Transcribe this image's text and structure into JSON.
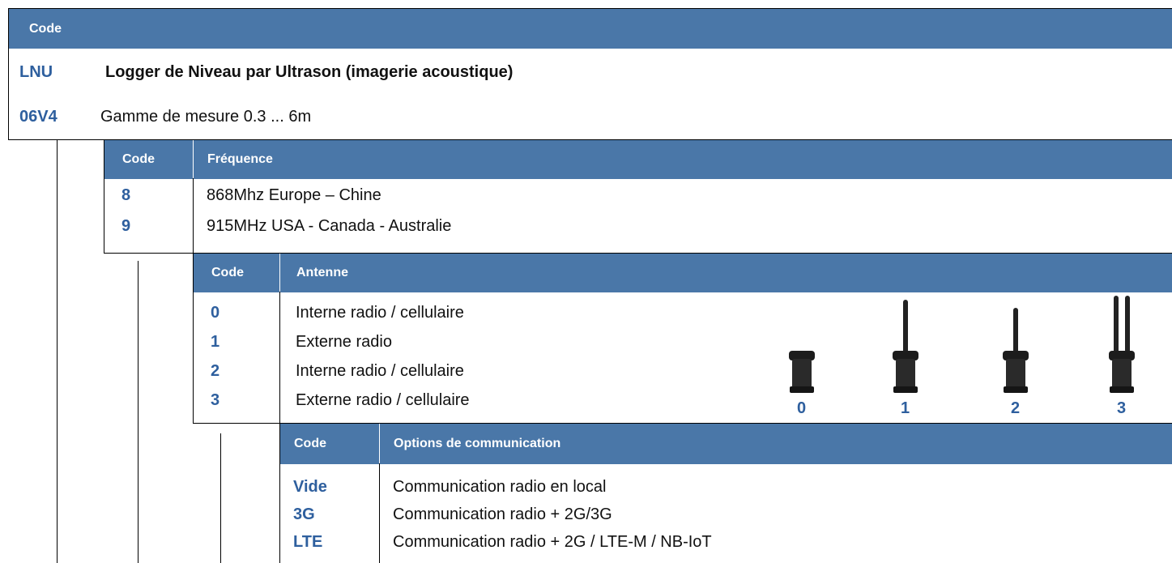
{
  "header": {
    "title": "Code"
  },
  "model": {
    "code": "LNU",
    "label": "Logger de Niveau par Ultrason (imagerie acoustique)"
  },
  "range": {
    "code": "06V4",
    "label": "Gamme de mesure 0.3 ... 6m"
  },
  "tables": [
    {
      "headers": [
        "Code",
        "Fréquence"
      ],
      "rows": [
        [
          "8",
          "868Mhz Europe – Chine"
        ],
        [
          "9",
          "915MHz USA - Canada - Australie"
        ]
      ]
    },
    {
      "headers": [
        "Code",
        "Antenne"
      ],
      "rows": [
        [
          "0",
          "Interne radio / cellulaire"
        ],
        [
          "1",
          "Externe radio"
        ],
        [
          "2",
          "Interne radio / cellulaire"
        ],
        [
          "3",
          "Externe radio / cellulaire"
        ]
      ]
    },
    {
      "headers": [
        "Code",
        "Options de communication"
      ],
      "rows": [
        [
          "Vide",
          "Communication radio en local"
        ],
        [
          "3G",
          "Communication radio  + 2G/3G"
        ],
        [
          "LTE",
          "Communication radio + 2G / LTE-M / NB-IoT"
        ]
      ]
    }
  ],
  "antenna_images": [
    "0",
    "1",
    "2",
    "3"
  ]
}
